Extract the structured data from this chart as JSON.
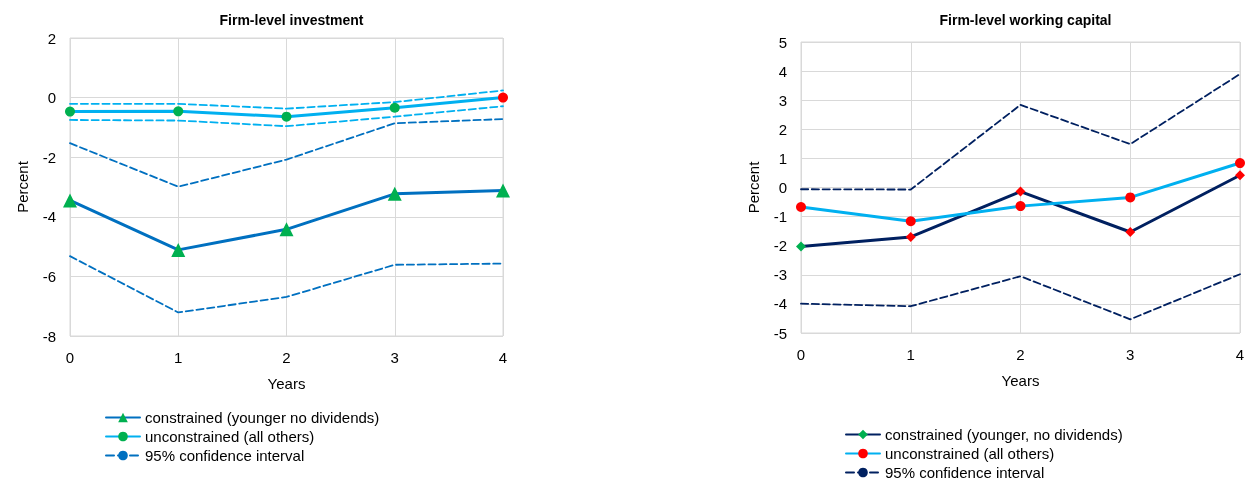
{
  "chart_data": [
    {
      "type": "line",
      "title": "Firm-level investment",
      "xlabel": "Years",
      "ylabel": "Percent",
      "categories": [
        "0",
        "1",
        "2",
        "3",
        "4"
      ],
      "ylim": [
        -8,
        2
      ],
      "yticks": [
        -8,
        -6,
        -4,
        -2,
        0,
        2
      ],
      "grid": true,
      "legend": "bottom",
      "series": [
        {
          "name": "constrained (younger no dividends)",
          "color": "#0070c0",
          "marker": "triangle",
          "line_style": "solid",
          "colors": [
            "#00b050",
            "#00b050",
            "#00b050",
            "#00b050",
            "#00b050"
          ],
          "values": [
            -3.45,
            -5.11,
            -4.42,
            -3.23,
            -3.12
          ]
        },
        {
          "name": "unconstrained (all others)",
          "color": "#00b0f0",
          "marker": "circle",
          "line_style": "solid",
          "colors": [
            "#00b050",
            "#00b050",
            "#00b050",
            "#00b050",
            "#ff0000"
          ],
          "values": [
            -0.47,
            -0.46,
            -0.64,
            -0.34,
            0
          ]
        },
        {
          "name": "95% confidence interval",
          "color": "#0070c0",
          "marker": "none",
          "line_style": "dashed",
          "values": [
            -1.53,
            -2.99,
            -2.08,
            -0.86,
            -0.72
          ]
        },
        {
          "color": "#0070c0",
          "marker": "none",
          "line_style": "dashed",
          "values": [
            -5.32,
            -7.21,
            -6.69,
            -5.61,
            -5.57
          ]
        },
        {
          "color": "#00b0f0",
          "marker": "none",
          "line_style": "dashed",
          "values": [
            -0.21,
            -0.21,
            -0.37,
            -0.15,
            0.24
          ]
        },
        {
          "color": "#00b0f0",
          "marker": "none",
          "line_style": "dashed",
          "values": [
            -0.75,
            -0.77,
            -0.96,
            -0.64,
            -0.29
          ]
        }
      ]
    },
    {
      "type": "line",
      "title": "Firm-level working capital",
      "xlabel": "Years",
      "ylabel": "Percent",
      "categories": [
        "0",
        "1",
        "2",
        "3",
        "4"
      ],
      "ylim": [
        -5,
        5
      ],
      "yticks": [
        -5,
        -4,
        -3,
        -2,
        -1,
        0,
        1,
        2,
        3,
        4,
        5
      ],
      "grid": true,
      "legend": "bottom",
      "series": [
        {
          "name": "constrained (younger, no dividends)",
          "color": "#002060",
          "marker": "diamond",
          "line_style": "solid",
          "colors": [
            "#00b050",
            "#ff0000",
            "#ff0000",
            "#ff0000",
            "#ff0000"
          ],
          "values": [
            -2.03,
            -1.7,
            -0.14,
            -1.53,
            0.42
          ]
        },
        {
          "name": "unconstrained (all others)",
          "color": "#00b0f0",
          "marker": "circle",
          "line_style": "solid",
          "colors": [
            "#ff0000",
            "#ff0000",
            "#ff0000",
            "#ff0000",
            "#ff0000"
          ],
          "values": [
            -0.67,
            -1.16,
            -0.64,
            -0.34,
            0.84
          ]
        },
        {
          "name": "95% confidence interval",
          "color": "#002060",
          "marker": "none",
          "line_style": "dashed",
          "values": [
            -0.06,
            -0.07,
            2.84,
            1.49,
            3.9
          ]
        },
        {
          "color": "#002060",
          "marker": "none",
          "line_style": "dashed",
          "values": [
            -3.99,
            -4.08,
            -3.05,
            -4.53,
            -2.98
          ]
        }
      ]
    }
  ]
}
